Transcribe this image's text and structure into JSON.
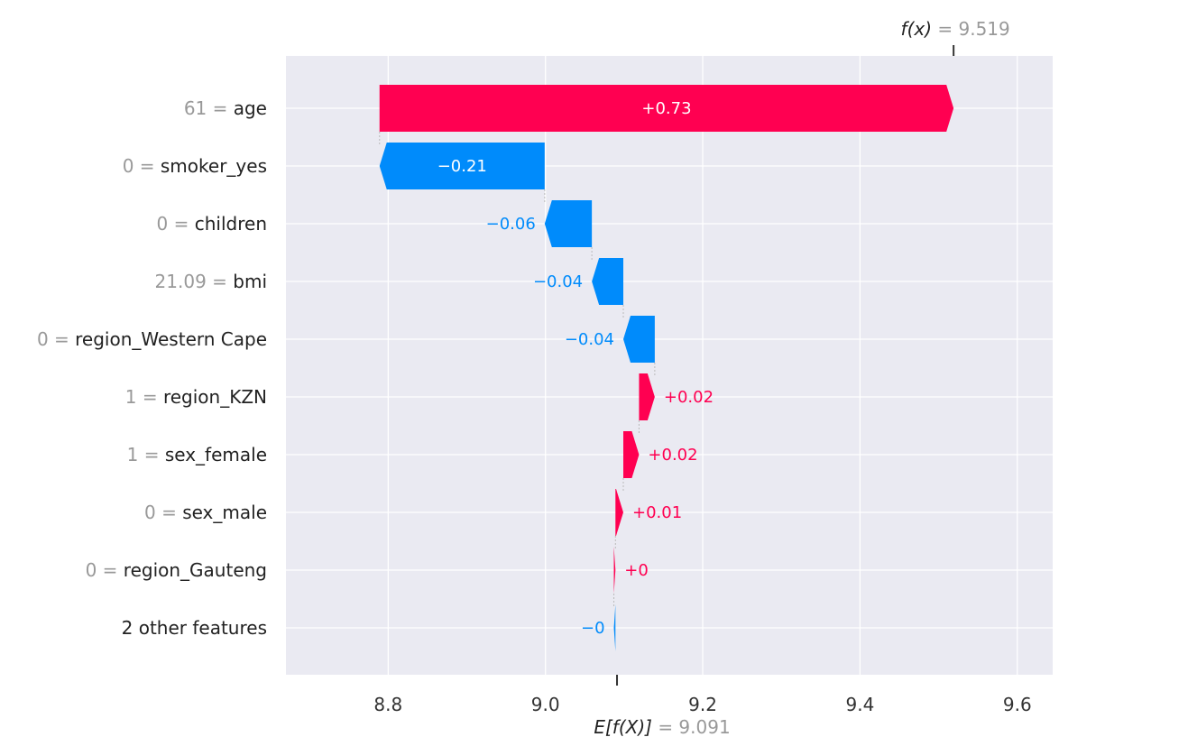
{
  "chart_data": {
    "type": "waterfall",
    "features": [
      {
        "value": "61",
        "name": "age",
        "contribution": 0.73,
        "label": "+0.73"
      },
      {
        "value": "0",
        "name": "smoker_yes",
        "contribution": -0.21,
        "label": "−0.21"
      },
      {
        "value": "0",
        "name": "children",
        "contribution": -0.06,
        "label": "−0.06"
      },
      {
        "value": "21.09",
        "name": "bmi",
        "contribution": -0.04,
        "label": "−0.04"
      },
      {
        "value": "0",
        "name": "region_Western Cape",
        "contribution": -0.04,
        "label": "−0.04"
      },
      {
        "value": "1",
        "name": "region_KZN",
        "contribution": 0.02,
        "label": "+0.02"
      },
      {
        "value": "1",
        "name": "sex_female",
        "contribution": 0.02,
        "label": "+0.02"
      },
      {
        "value": "0",
        "name": "sex_male",
        "contribution": 0.01,
        "label": "+0.01"
      },
      {
        "value": "0",
        "name": "region_Gauteng",
        "contribution": 0.002,
        "label": "+0"
      },
      {
        "value": "",
        "name": "2 other features",
        "contribution": -0.002,
        "label": "−0"
      }
    ],
    "base_value": 9.091,
    "output_value": 9.519,
    "base_label": "E[f(X)]",
    "base_value_text": "= 9.091",
    "output_label": "f(x)",
    "output_value_text": "= 9.519",
    "x_ticks": [
      8.8,
      9.0,
      9.2,
      9.4,
      9.6
    ],
    "x_tick_labels": [
      "8.8",
      "9.0",
      "9.2",
      "9.4",
      "9.6"
    ],
    "xlim": [
      8.67,
      9.645
    ],
    "grid": true,
    "colors": {
      "positive": "#ff0051",
      "negative": "#008bfb",
      "background": "#eaeaf2",
      "grid": "#ffffff"
    }
  }
}
